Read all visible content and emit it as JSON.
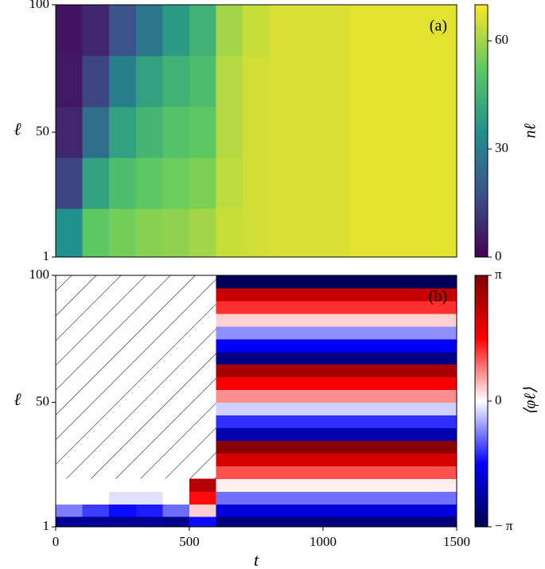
{
  "chart_data": [
    {
      "type": "heatmap",
      "panel_label": "(a)",
      "y_label": "ℓ",
      "x_edges": [
        0,
        100,
        200,
        300,
        400,
        500,
        600,
        700,
        800,
        900,
        1000,
        1100,
        1200,
        1300,
        1400,
        1500
      ],
      "y_edges": [
        1,
        20,
        40,
        60,
        80,
        100
      ],
      "z": [
        [
          35,
          52,
          55,
          57,
          58,
          60,
          64,
          65,
          66,
          66,
          66,
          67,
          67,
          67,
          67
        ],
        [
          15,
          40,
          48,
          52,
          54,
          56,
          63,
          65,
          66,
          66,
          66,
          67,
          67,
          67,
          67
        ],
        [
          8,
          25,
          40,
          46,
          50,
          52,
          62,
          65,
          66,
          66,
          66,
          67,
          67,
          67,
          67
        ],
        [
          5,
          15,
          30,
          40,
          45,
          48,
          62,
          65,
          66,
          66,
          66,
          67,
          67,
          67,
          67
        ],
        [
          4,
          8,
          18,
          28,
          38,
          45,
          60,
          64,
          66,
          66,
          66,
          67,
          67,
          67,
          67
        ]
      ],
      "xlim": [
        0,
        1500
      ],
      "ylim": [
        1,
        100
      ],
      "yticks": [
        1,
        50,
        100
      ],
      "colormap": "viridis",
      "clim": [
        0,
        70
      ],
      "cticks": [
        0,
        30,
        60
      ],
      "colorbar_label": "nℓ"
    },
    {
      "type": "heatmap",
      "panel_label": "(b)",
      "y_label": "ℓ",
      "x_label": "t",
      "x_edges": [
        0,
        100,
        200,
        300,
        400,
        500,
        600,
        700,
        800,
        900,
        1000,
        1100,
        1200,
        1300,
        1400,
        1500
      ],
      "y_edges": [
        1,
        5,
        10,
        15,
        20,
        25,
        30,
        35,
        40,
        45,
        50,
        55,
        60,
        65,
        70,
        75,
        80,
        85,
        90,
        95,
        100
      ],
      "z": [
        [
          -2.5,
          -2.5,
          -2.5,
          -2.5,
          -2.6,
          -1.5,
          -2.75,
          -2.75,
          -2.75,
          -2.75,
          -2.75,
          -2.75,
          -2.75,
          -2.75,
          -2.75
        ],
        [
          -0.8,
          -1.2,
          -1.5,
          -1.4,
          -0.9,
          0.3,
          -1.87,
          -1.87,
          -1.87,
          -1.87,
          -1.87,
          -1.87,
          -1.87,
          -1.87,
          -1.87
        ],
        [
          0,
          0,
          -0.2,
          -0.2,
          0,
          1.5,
          -0.88,
          -0.88,
          -0.88,
          -0.88,
          -0.88,
          -0.88,
          -0.88,
          -0.88,
          -0.88
        ],
        [
          0,
          0,
          0,
          0,
          0,
          2.5,
          0.1,
          0.1,
          0.1,
          0.1,
          0.1,
          0.1,
          0.1,
          0.1,
          0.1
        ],
        [
          null,
          null,
          null,
          null,
          null,
          null,
          1.08,
          1.08,
          1.08,
          1.08,
          1.08,
          1.08,
          1.08,
          1.08,
          1.08
        ],
        [
          null,
          null,
          null,
          null,
          null,
          null,
          2.06,
          2.06,
          2.06,
          2.06,
          2.06,
          2.06,
          2.06,
          2.06,
          2.06
        ],
        [
          null,
          null,
          null,
          null,
          null,
          null,
          3.04,
          3.04,
          3.04,
          3.04,
          3.04,
          3.04,
          3.04,
          3.04,
          3.04
        ],
        [
          null,
          null,
          null,
          null,
          null,
          null,
          -2.26,
          -2.26,
          -2.26,
          -2.26,
          -2.26,
          -2.26,
          -2.26,
          -2.26,
          -2.26
        ],
        [
          null,
          null,
          null,
          null,
          null,
          null,
          -1.28,
          -1.28,
          -1.28,
          -1.28,
          -1.28,
          -1.28,
          -1.28,
          -1.28,
          -1.28
        ],
        [
          null,
          null,
          null,
          null,
          null,
          null,
          -0.29,
          -0.29,
          -0.29,
          -0.29,
          -0.29,
          -0.29,
          -0.29,
          -0.29,
          -0.29
        ],
        [
          null,
          null,
          null,
          null,
          null,
          null,
          0.69,
          0.69,
          0.69,
          0.69,
          0.69,
          0.69,
          0.69,
          0.69,
          0.69
        ],
        [
          null,
          null,
          null,
          null,
          null,
          null,
          1.67,
          1.67,
          1.67,
          1.67,
          1.67,
          1.67,
          1.67,
          1.67,
          1.67
        ],
        [
          null,
          null,
          null,
          null,
          null,
          null,
          2.65,
          2.65,
          2.65,
          2.65,
          2.65,
          2.65,
          2.65,
          2.65,
          2.65
        ],
        [
          null,
          null,
          null,
          null,
          null,
          null,
          -2.65,
          -2.65,
          -2.65,
          -2.65,
          -2.65,
          -2.65,
          -2.65,
          -2.65,
          -2.65
        ],
        [
          null,
          null,
          null,
          null,
          null,
          null,
          -1.67,
          -1.67,
          -1.67,
          -1.67,
          -1.67,
          -1.67,
          -1.67,
          -1.67,
          -1.67
        ],
        [
          null,
          null,
          null,
          null,
          null,
          null,
          -0.69,
          -0.69,
          -0.69,
          -0.69,
          -0.69,
          -0.69,
          -0.69,
          -0.69,
          -0.69
        ],
        [
          null,
          null,
          null,
          null,
          null,
          null,
          0.29,
          0.29,
          0.29,
          0.29,
          0.29,
          0.29,
          0.29,
          0.29,
          0.29
        ],
        [
          null,
          null,
          null,
          null,
          null,
          null,
          1.28,
          1.28,
          1.28,
          1.28,
          1.28,
          1.28,
          1.28,
          1.28,
          1.28
        ],
        [
          null,
          null,
          null,
          null,
          null,
          null,
          2.26,
          2.26,
          2.26,
          2.26,
          2.26,
          2.26,
          2.26,
          2.26,
          2.26
        ],
        [
          null,
          null,
          null,
          null,
          null,
          null,
          -3.04,
          -3.04,
          -3.04,
          -3.04,
          -3.04,
          -3.04,
          -3.04,
          -3.04,
          -3.04
        ]
      ],
      "xlim": [
        0,
        1500
      ],
      "xticks": [
        0,
        500,
        1000,
        1500
      ],
      "ylim": [
        1,
        100
      ],
      "yticks": [
        1,
        50,
        100
      ],
      "colormap": "seismic",
      "clim": [
        -3.14159,
        3.14159
      ],
      "cticks": [
        {
          "value": -3.14159,
          "label": "− π"
        },
        0,
        {
          "value": 3.14159,
          "label": "π"
        }
      ],
      "colorbar_label": "⟨φℓ⟩"
    }
  ]
}
